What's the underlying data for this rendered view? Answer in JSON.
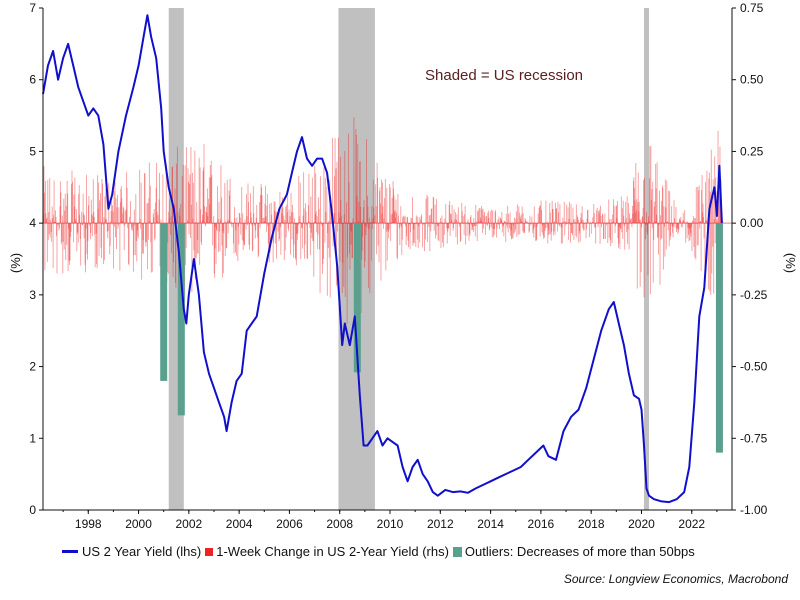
{
  "chart_data": {
    "type": "line",
    "title": "",
    "annotation": "Shaded = US recession",
    "source": "Source: Longview Economics, Macrobond",
    "x_range": [
      1996.2,
      2023.6
    ],
    "x_ticks": [
      1998,
      2000,
      2002,
      2004,
      2006,
      2008,
      2010,
      2012,
      2014,
      2016,
      2018,
      2020,
      2022
    ],
    "y_left": {
      "label": "(%)",
      "range": [
        0,
        7
      ],
      "ticks": [
        0,
        1,
        2,
        3,
        4,
        5,
        6,
        7
      ]
    },
    "y_right": {
      "label": "(%)",
      "range": [
        -1.0,
        0.75
      ],
      "ticks": [
        -1.0,
        -0.75,
        -0.5,
        -0.25,
        0.0,
        0.25,
        0.5,
        0.75
      ],
      "tick_labels": [
        "-1.00",
        "-0.75",
        "-0.50",
        "-0.25",
        "0.00",
        "0.25",
        "0.50",
        "0.75"
      ]
    },
    "recessions": [
      [
        2001.2,
        2001.8
      ],
      [
        2007.95,
        2009.4
      ],
      [
        2020.1,
        2020.3
      ]
    ],
    "series": [
      {
        "name": "US 2 Year Yield (lhs)",
        "axis": "left",
        "kind": "line",
        "color": "#1010cc",
        "x": [
          1996.2,
          1996.4,
          1996.6,
          1996.8,
          1997.0,
          1997.2,
          1997.4,
          1997.6,
          1997.8,
          1998.0,
          1998.2,
          1998.4,
          1998.6,
          1998.8,
          1998.95,
          1999.2,
          1999.5,
          1999.8,
          2000.0,
          2000.2,
          2000.35,
          2000.5,
          2000.7,
          2000.9,
          2001.0,
          2001.2,
          2001.4,
          2001.6,
          2001.8,
          2001.9,
          2002.0,
          2002.2,
          2002.4,
          2002.6,
          2002.8,
          2003.0,
          2003.2,
          2003.4,
          2003.5,
          2003.7,
          2003.9,
          2004.1,
          2004.3,
          2004.5,
          2004.7,
          2005.0,
          2005.3,
          2005.6,
          2005.9,
          2006.1,
          2006.3,
          2006.5,
          2006.7,
          2006.9,
          2007.1,
          2007.3,
          2007.5,
          2007.7,
          2007.9,
          2008.1,
          2008.2,
          2008.4,
          2008.6,
          2008.8,
          2008.95,
          2009.1,
          2009.3,
          2009.5,
          2009.7,
          2009.9,
          2010.1,
          2010.3,
          2010.5,
          2010.7,
          2010.9,
          2011.1,
          2011.3,
          2011.5,
          2011.7,
          2011.9,
          2012.2,
          2012.5,
          2012.8,
          2013.1,
          2013.4,
          2013.7,
          2014.0,
          2014.3,
          2014.6,
          2014.9,
          2015.2,
          2015.5,
          2015.8,
          2016.1,
          2016.3,
          2016.6,
          2016.9,
          2017.2,
          2017.5,
          2017.8,
          2018.1,
          2018.4,
          2018.7,
          2018.9,
          2019.1,
          2019.3,
          2019.5,
          2019.7,
          2019.9,
          2020.0,
          2020.1,
          2020.2,
          2020.3,
          2020.5,
          2020.8,
          2021.1,
          2021.4,
          2021.7,
          2021.9,
          2022.1,
          2022.3,
          2022.5,
          2022.7,
          2022.9,
          2023.0,
          2023.1,
          2023.2
        ],
        "values": [
          5.8,
          6.2,
          6.4,
          6.0,
          6.3,
          6.5,
          6.2,
          5.9,
          5.7,
          5.5,
          5.6,
          5.5,
          5.1,
          4.2,
          4.4,
          5.0,
          5.5,
          5.9,
          6.2,
          6.6,
          6.9,
          6.6,
          6.3,
          5.6,
          5.0,
          4.5,
          4.2,
          3.6,
          2.8,
          2.6,
          3.0,
          3.5,
          3.0,
          2.2,
          1.9,
          1.7,
          1.5,
          1.3,
          1.1,
          1.5,
          1.8,
          1.9,
          2.5,
          2.6,
          2.7,
          3.3,
          3.8,
          4.2,
          4.4,
          4.7,
          5.0,
          5.2,
          4.9,
          4.8,
          4.9,
          4.9,
          4.7,
          4.1,
          3.4,
          2.3,
          2.6,
          2.3,
          2.7,
          1.6,
          0.9,
          0.9,
          1.0,
          1.1,
          0.9,
          1.0,
          0.95,
          0.9,
          0.6,
          0.4,
          0.6,
          0.7,
          0.5,
          0.4,
          0.25,
          0.2,
          0.28,
          0.25,
          0.26,
          0.24,
          0.3,
          0.35,
          0.4,
          0.45,
          0.5,
          0.55,
          0.6,
          0.7,
          0.8,
          0.9,
          0.75,
          0.7,
          1.1,
          1.3,
          1.4,
          1.7,
          2.1,
          2.5,
          2.8,
          2.9,
          2.6,
          2.3,
          1.9,
          1.6,
          1.55,
          1.4,
          0.9,
          0.3,
          0.2,
          0.15,
          0.12,
          0.11,
          0.15,
          0.25,
          0.6,
          1.5,
          2.7,
          3.1,
          4.2,
          4.5,
          4.1,
          4.8,
          4.0
        ]
      },
      {
        "name": "1-Week Change in US 2-Year Yield (rhs)",
        "axis": "right",
        "kind": "noise-bars",
        "color": "#ee2222",
        "weekly_band": {
          "x": [
            1996.2,
            1999.0,
            2001.0,
            2002.5,
            2004.0,
            2006.0,
            2007.6,
            2008.4,
            2009.5,
            2010.5,
            2011.5,
            2014.0,
            2016.0,
            2018.0,
            2019.5,
            2020.0,
            2021.5,
            2022.0,
            2022.6,
            2023.0,
            2023.2
          ],
          "amplitude": [
            0.2,
            0.16,
            0.25,
            0.3,
            0.15,
            0.14,
            0.3,
            0.4,
            0.25,
            0.12,
            0.1,
            0.06,
            0.08,
            0.07,
            0.1,
            0.4,
            0.03,
            0.12,
            0.22,
            0.35,
            0.25
          ]
        }
      },
      {
        "name": "Outliers: Decreases of more than 50bps",
        "axis": "right",
        "kind": "bars",
        "color": "#5aa08e",
        "x": [
          2001.0,
          2001.7,
          2008.7,
          2023.1
        ],
        "values": [
          -0.55,
          -0.67,
          -0.52,
          -0.8
        ]
      }
    ]
  },
  "legend": {
    "items": [
      {
        "label": "US 2 Year Yield (lhs)",
        "color": "#1010cc"
      },
      {
        "label": "1-Week Change in US 2-Year Yield (rhs)",
        "color": "#ee2222"
      },
      {
        "label": "Outliers: Decreases of more than 50bps",
        "color": "#5aa08e"
      }
    ]
  },
  "colors": {
    "recession": "#c0c0c0",
    "annotation": "#5a2020",
    "axis": "#111111"
  }
}
